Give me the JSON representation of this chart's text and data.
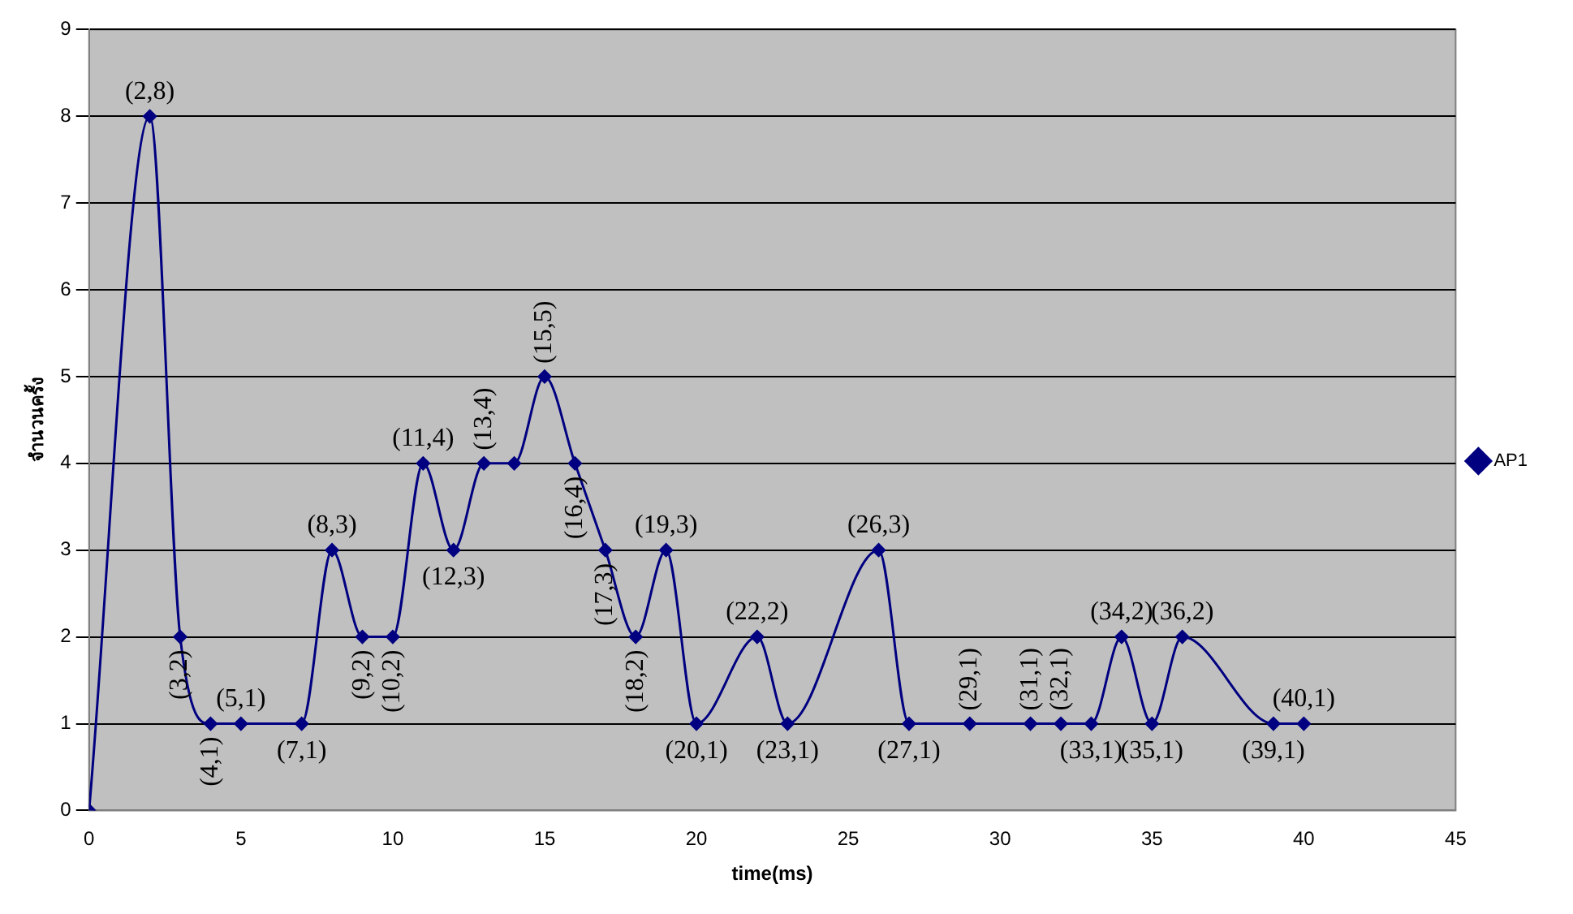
{
  "chart_data": {
    "type": "line",
    "xlabel": "time(ms)",
    "ylabel": "จำนวนครั้ง",
    "x": [
      0,
      2,
      3,
      4,
      5,
      7,
      8,
      9,
      10,
      11,
      12,
      13,
      14,
      15,
      16,
      17,
      18,
      19,
      20,
      22,
      23,
      26,
      27,
      29,
      31,
      32,
      33,
      34,
      35,
      36,
      39,
      40
    ],
    "series": [
      {
        "name": "AP1",
        "color": "#000080",
        "values": [
          0,
          8,
          2,
          1,
          1,
          1,
          3,
          2,
          2,
          4,
          3,
          4,
          4,
          5,
          4,
          3,
          2,
          3,
          1,
          2,
          1,
          3,
          1,
          1,
          1,
          1,
          1,
          2,
          1,
          2,
          1,
          1
        ]
      }
    ],
    "annotations": [
      {
        "text": "(2,8)",
        "x": 2,
        "y": 8
      },
      {
        "text": "(3,2)",
        "x": 3,
        "y": 2
      },
      {
        "text": "(4,1)",
        "x": 4,
        "y": 1
      },
      {
        "text": "(5,1)",
        "x": 5,
        "y": 1
      },
      {
        "text": "(7,1)",
        "x": 7,
        "y": 1
      },
      {
        "text": "(8,3)",
        "x": 8,
        "y": 3
      },
      {
        "text": "(9,2)",
        "x": 9,
        "y": 2
      },
      {
        "text": "(10,2)",
        "x": 10,
        "y": 2
      },
      {
        "text": "(11,4)",
        "x": 11,
        "y": 4
      },
      {
        "text": "(12,3)",
        "x": 12,
        "y": 3
      },
      {
        "text": "(13,4)",
        "x": 13,
        "y": 4
      },
      {
        "text": "(15,5)",
        "x": 15,
        "y": 5
      },
      {
        "text": "(16,4)",
        "x": 16,
        "y": 4
      },
      {
        "text": "(17,3)",
        "x": 17,
        "y": 3
      },
      {
        "text": "(18,2)",
        "x": 18,
        "y": 2
      },
      {
        "text": "(19,3)",
        "x": 19,
        "y": 3
      },
      {
        "text": "(20,1)",
        "x": 20,
        "y": 1
      },
      {
        "text": "(22,2)",
        "x": 22,
        "y": 2
      },
      {
        "text": "(23,1)",
        "x": 23,
        "y": 1
      },
      {
        "text": "(26,3)",
        "x": 26,
        "y": 3
      },
      {
        "text": "(27,1)",
        "x": 27,
        "y": 1
      },
      {
        "text": "(29,1)",
        "x": 29,
        "y": 1
      },
      {
        "text": "(31,1)",
        "x": 31,
        "y": 1
      },
      {
        "text": "(32,1)",
        "x": 32,
        "y": 1
      },
      {
        "text": "(33,1)",
        "x": 33,
        "y": 1
      },
      {
        "text": "(34,2)",
        "x": 34,
        "y": 2
      },
      {
        "text": "(35,1)",
        "x": 35,
        "y": 1
      },
      {
        "text": "(36,2)",
        "x": 36,
        "y": 2
      },
      {
        "text": "(39,1)",
        "x": 39,
        "y": 1
      },
      {
        "text": "(40,1)",
        "x": 40,
        "y": 1
      }
    ],
    "xlim": [
      0,
      45
    ],
    "xticks": [
      0,
      5,
      10,
      15,
      20,
      25,
      30,
      35,
      40,
      45
    ],
    "ylim": [
      0,
      9
    ],
    "yticks": [
      0,
      1,
      2,
      3,
      4,
      5,
      6,
      7,
      8,
      9
    ],
    "grid": "y",
    "legend": "right",
    "marker": "diamond",
    "line_style": "solid"
  }
}
